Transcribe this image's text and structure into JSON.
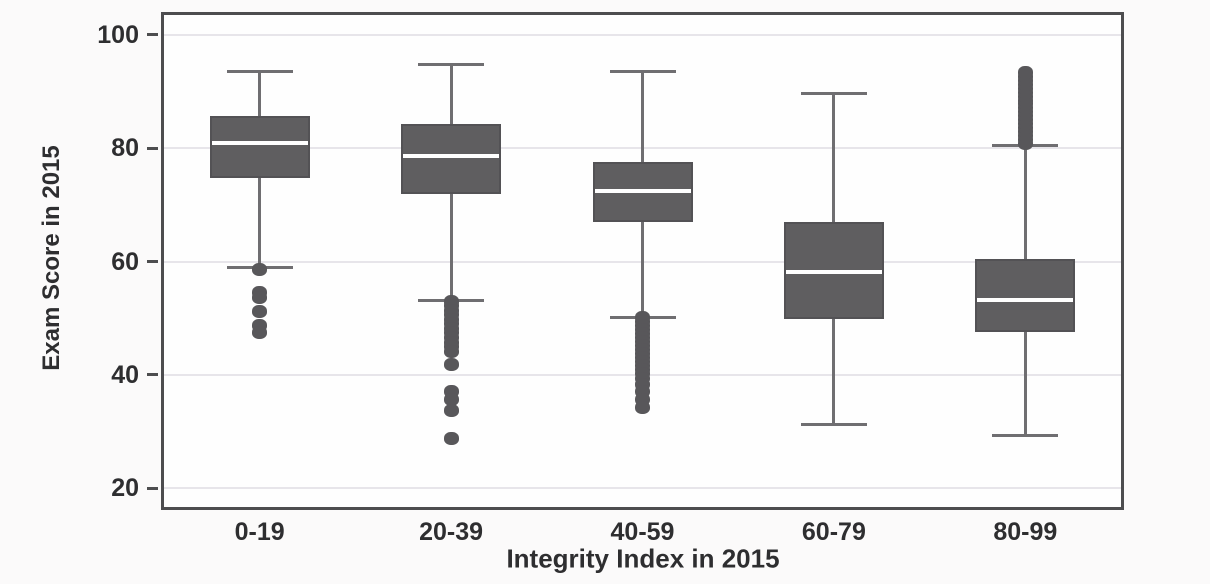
{
  "page": {
    "background": "#fbfafa"
  },
  "chart_data": {
    "type": "box",
    "title": "",
    "xlabel": "Integrity Index in 2015",
    "ylabel": "Exam Score in 2015",
    "categories": [
      "0-19",
      "20-39",
      "40-59",
      "60-79",
      "80-99"
    ],
    "y_ticks": [
      20,
      40,
      60,
      80,
      100
    ],
    "ylim": [
      16.7,
      103.5
    ],
    "grid": true,
    "legend": false,
    "series": [
      {
        "category": "0-19",
        "whisker_low": 59.0,
        "q1": 74.8,
        "median": 80.9,
        "q3": 85.7,
        "whisker_high": 93.5,
        "outliers": [
          58.6,
          54.6,
          53.6,
          51.2,
          48.8,
          47.5
        ]
      },
      {
        "category": "20-39",
        "whisker_low": 53.2,
        "q1": 71.9,
        "median": 78.6,
        "q3": 84.2,
        "whisker_high": 94.8,
        "outliers": [
          53.0,
          52.2,
          51.4,
          50.6,
          49.8,
          49.0,
          48.2,
          47.4,
          46.6,
          45.8,
          45.0,
          44.2,
          41.8,
          37.0,
          35.7,
          33.8,
          28.7
        ]
      },
      {
        "category": "40-59",
        "whisker_low": 50.1,
        "q1": 66.9,
        "median": 72.5,
        "q3": 77.5,
        "whisker_high": 93.6,
        "outliers": [
          50.1,
          49.4,
          48.7,
          48.0,
          47.3,
          46.6,
          45.9,
          45.2,
          44.5,
          43.8,
          43.1,
          42.4,
          41.7,
          41.0,
          40.3,
          39.4,
          38.3,
          37.0,
          35.6,
          34.3
        ]
      },
      {
        "category": "60-79",
        "whisker_low": 31.2,
        "q1": 49.8,
        "median": 58.2,
        "q3": 66.9,
        "whisker_high": 89.6,
        "outliers": []
      },
      {
        "category": "80-99",
        "whisker_low": 29.3,
        "q1": 47.6,
        "median": 53.3,
        "q3": 60.5,
        "whisker_high": 80.5,
        "outliers": [
          80.8,
          81.5,
          82.2,
          82.9,
          83.6,
          84.3,
          85.0,
          85.7,
          86.4,
          87.1,
          87.8,
          88.5,
          89.2,
          89.9,
          90.6,
          91.3,
          92.0,
          92.7,
          93.4
        ]
      }
    ],
    "colors": {
      "box_fill": "#5f5e60",
      "box_border": "#535255",
      "median": "#ffffff",
      "whisker": "#6f6e71",
      "outlier": "#58575a",
      "frame": "#4d4d4f",
      "gridline": "#e7e5ea",
      "text": "#2e2e30",
      "plot_background": "#fefefe"
    }
  }
}
